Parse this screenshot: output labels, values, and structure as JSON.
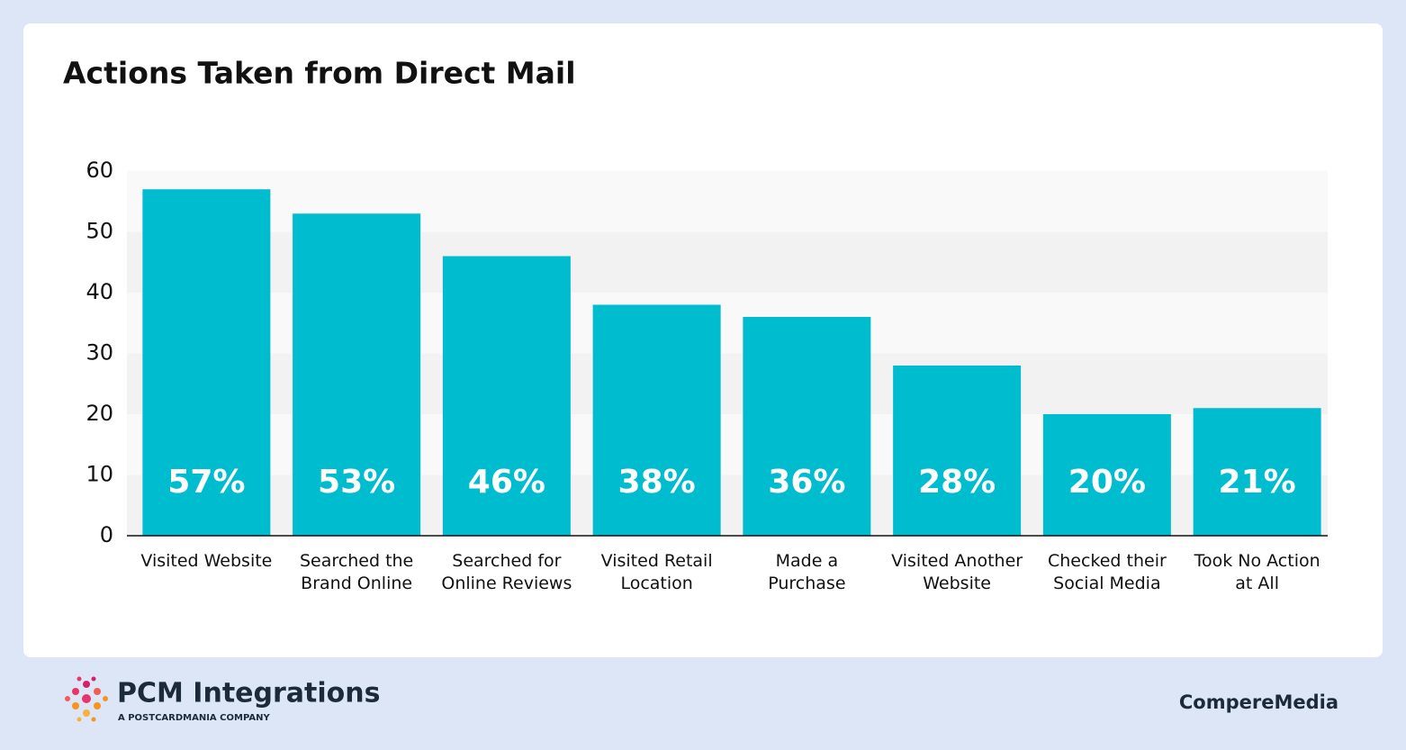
{
  "chart_data": {
    "type": "bar",
    "title": "Actions Taken from Direct Mail",
    "categories": [
      "Visited Website",
      "Searched the Brand Online",
      "Searched for Online Reviews",
      "Visited Retail Location",
      "Made a Purchase",
      "Visited Another Website",
      "Checked their Social Media",
      "Took No Action at All"
    ],
    "values": [
      57,
      53,
      46,
      38,
      36,
      28,
      20,
      21
    ],
    "value_labels": [
      "57%",
      "53%",
      "46%",
      "38%",
      "36%",
      "28%",
      "20%",
      "21%"
    ],
    "color": "#00bccf",
    "ylim": [
      0,
      60
    ],
    "yticks": [
      0,
      10,
      20,
      30,
      40,
      50,
      60
    ],
    "grid": true
  },
  "footer": {
    "brand": "PCM Integrations",
    "brand_tagline": "A POSTCARDMANIA COMPANY",
    "partner": "CompereMedia"
  }
}
